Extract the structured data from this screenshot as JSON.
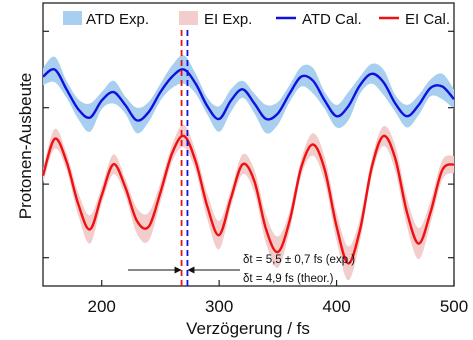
{
  "chart_data": {
    "type": "line",
    "title": "",
    "xlabel": "Verzögerung / fs",
    "ylabel": "Protonen-Ausbeute",
    "xlim": [
      150,
      500
    ],
    "ylim": [
      0,
      1
    ],
    "xticks": [
      200,
      300,
      400,
      500
    ],
    "yticks_labeled": false,
    "grid": false,
    "legend_position": "top",
    "legend": [
      {
        "label": "ATD Exp.",
        "kind": "band",
        "color": "#a8cef0"
      },
      {
        "label": "EI Exp.",
        "kind": "band",
        "color": "#f3cccc"
      },
      {
        "label": "ATD Cal.",
        "kind": "line",
        "color": "#1010e0"
      },
      {
        "label": "EI Cal.",
        "kind": "line",
        "color": "#ee1111"
      }
    ],
    "series": [
      {
        "name": "ATD Cal.",
        "color": "#1010e0",
        "x": [
          150,
          160,
          170,
          180,
          190,
          200,
          210,
          220,
          230,
          240,
          250,
          260,
          270,
          280,
          290,
          300,
          310,
          320,
          330,
          340,
          350,
          360,
          370,
          380,
          390,
          400,
          410,
          420,
          430,
          440,
          450,
          460,
          470,
          480,
          490,
          500
        ],
        "y": [
          0.74,
          0.765,
          0.695,
          0.625,
          0.595,
          0.655,
          0.685,
          0.64,
          0.585,
          0.615,
          0.685,
          0.74,
          0.765,
          0.715,
          0.635,
          0.59,
          0.655,
          0.695,
          0.645,
          0.59,
          0.61,
          0.68,
          0.74,
          0.725,
          0.655,
          0.6,
          0.635,
          0.71,
          0.75,
          0.72,
          0.645,
          0.6,
          0.64,
          0.7,
          0.705,
          0.66
        ]
      },
      {
        "name": "EI Cal.",
        "color": "#ee1111",
        "x": [
          150,
          160,
          170,
          180,
          190,
          200,
          210,
          220,
          230,
          240,
          250,
          260,
          270,
          280,
          290,
          300,
          310,
          320,
          330,
          340,
          350,
          360,
          370,
          380,
          390,
          400,
          410,
          420,
          430,
          440,
          450,
          460,
          470,
          480,
          490,
          500
        ],
        "y": [
          0.39,
          0.52,
          0.44,
          0.29,
          0.2,
          0.32,
          0.43,
          0.35,
          0.23,
          0.21,
          0.33,
          0.47,
          0.53,
          0.44,
          0.28,
          0.18,
          0.31,
          0.43,
          0.37,
          0.2,
          0.12,
          0.23,
          0.42,
          0.5,
          0.41,
          0.21,
          0.08,
          0.2,
          0.42,
          0.53,
          0.45,
          0.26,
          0.15,
          0.26,
          0.41,
          0.43
        ]
      }
    ],
    "bands": [
      {
        "name": "ATD Exp.",
        "color": "#a8cef0",
        "follows": "ATD Cal.",
        "halfwidth": [
          0.03,
          0.045,
          0.03,
          0.035,
          0.05,
          0.03,
          0.04,
          0.03,
          0.045,
          0.035,
          0.03,
          0.04,
          0.05,
          0.035,
          0.03,
          0.045,
          0.04,
          0.03,
          0.035,
          0.05,
          0.04,
          0.03,
          0.035,
          0.045,
          0.03,
          0.04,
          0.05,
          0.03,
          0.035,
          0.045,
          0.03,
          0.04,
          0.035,
          0.03,
          0.045,
          0.035
        ]
      },
      {
        "name": "EI Exp.",
        "color": "#f3cccc",
        "follows": "EI Cal.",
        "halfwidth": [
          0.025,
          0.035,
          0.03,
          0.04,
          0.05,
          0.03,
          0.035,
          0.03,
          0.045,
          0.05,
          0.035,
          0.03,
          0.04,
          0.035,
          0.045,
          0.05,
          0.03,
          0.035,
          0.04,
          0.05,
          0.055,
          0.035,
          0.03,
          0.04,
          0.045,
          0.05,
          0.06,
          0.04,
          0.03,
          0.035,
          0.045,
          0.05,
          0.055,
          0.04,
          0.035,
          0.03
        ]
      }
    ],
    "vlines": [
      {
        "x": 268,
        "color": "#ee1111",
        "style": "dashed"
      },
      {
        "x": 273,
        "color": "#1010e0",
        "style": "dashed"
      }
    ],
    "annotation": {
      "line1": "δt = 5,5 ± 0,7 fs (exp.)",
      "line2": "δt = 4,9 fs (theor.)",
      "arrow_left_to": 268,
      "arrow_right_to": 273
    }
  }
}
